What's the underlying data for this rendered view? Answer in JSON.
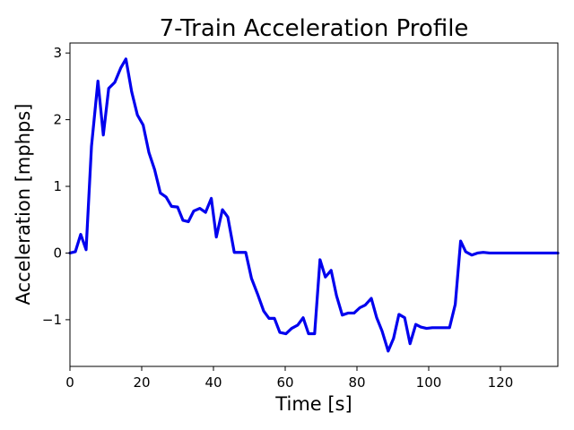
{
  "chart_data": {
    "type": "line",
    "title": "7-Train Acceleration Profile",
    "xlabel": "Time [s]",
    "ylabel": "Acceleration [mphps]",
    "xlim": [
      0,
      136
    ],
    "ylim": [
      -1.7,
      3.15
    ],
    "xticks": [
      0,
      20,
      40,
      60,
      80,
      100,
      120
    ],
    "yticks": [
      -1,
      0,
      1,
      2,
      3
    ],
    "xtick_labels": [
      "0",
      "20",
      "40",
      "60",
      "80",
      "100",
      "120"
    ],
    "ytick_labels": [
      "−1",
      "0",
      "1",
      "2",
      "3"
    ],
    "grid": false,
    "series": [
      {
        "color": "#0000ee",
        "x": [
          0,
          1.5,
          3,
          4.5,
          6,
          7.8,
          9.3,
          10.8,
          12.5,
          14.2,
          15.6,
          17.2,
          18.8,
          20.4,
          22,
          23.6,
          25.2,
          26.8,
          28.3,
          30,
          31.5,
          33,
          34.5,
          36.2,
          37.8,
          39.4,
          40.8,
          42.5,
          44,
          45.8,
          47.3,
          49,
          50.6,
          52.4,
          54,
          55.5,
          57,
          58.5,
          60.2,
          61.8,
          63.5,
          65,
          66.5,
          68.2,
          69.7,
          71.2,
          72.8,
          74.3,
          75.9,
          77.5,
          79.2,
          80.8,
          82.3,
          84,
          85.5,
          87,
          88.7,
          90.2,
          91.7,
          93.3,
          94.8,
          96.4,
          97.8,
          99.4,
          101,
          102.6,
          104.2,
          105.8,
          107.4,
          108.9,
          110.3,
          112,
          113.6,
          115.2,
          117,
          119,
          125,
          130,
          136
        ],
        "y": [
          0,
          0.02,
          0.28,
          0.05,
          1.6,
          2.58,
          1.77,
          2.47,
          2.56,
          2.78,
          2.91,
          2.42,
          2.07,
          1.92,
          1.51,
          1.25,
          0.9,
          0.84,
          0.7,
          0.69,
          0.49,
          0.47,
          0.63,
          0.67,
          0.61,
          0.82,
          0.24,
          0.65,
          0.54,
          0.01,
          0.01,
          0.01,
          -0.38,
          -0.63,
          -0.87,
          -0.98,
          -0.98,
          -1.19,
          -1.21,
          -1.13,
          -1.08,
          -0.97,
          -1.21,
          -1.21,
          -0.1,
          -0.36,
          -0.26,
          -0.64,
          -0.93,
          -0.9,
          -0.9,
          -0.82,
          -0.78,
          -0.68,
          -0.97,
          -1.17,
          -1.47,
          -1.28,
          -0.92,
          -0.97,
          -1.36,
          -1.07,
          -1.11,
          -1.13,
          -1.12,
          -1.12,
          -1.12,
          -1.12,
          -0.77,
          0.18,
          0.02,
          -0.03,
          0.0,
          0.01,
          0.0,
          0.0,
          0.0,
          0.0,
          0.0
        ]
      }
    ]
  }
}
